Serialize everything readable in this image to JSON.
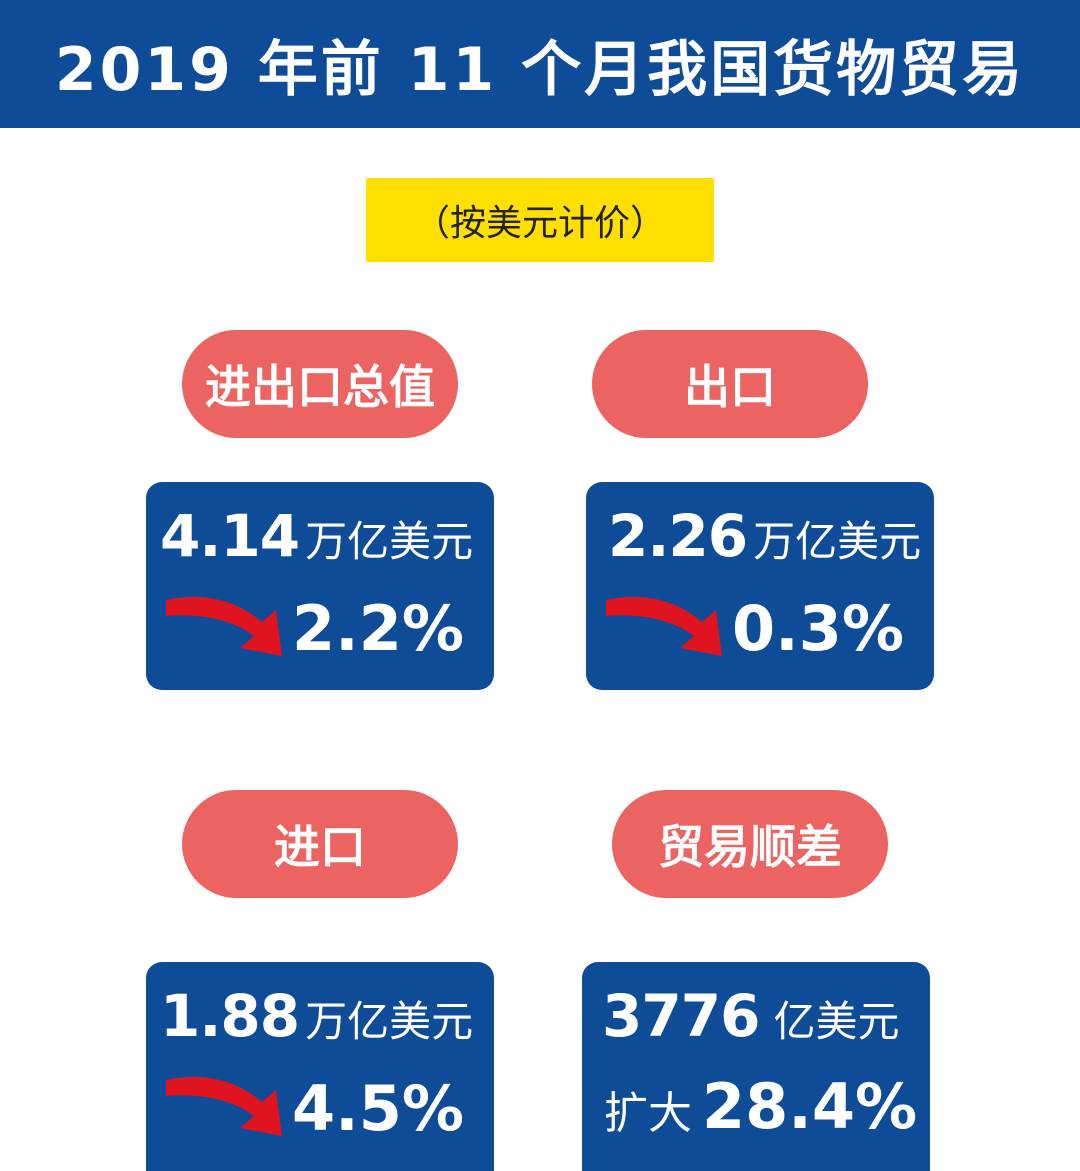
{
  "header": {
    "title": "2019 年前 11 个月我国货物贸易"
  },
  "note": "（按美元计价）",
  "cards": {
    "total": {
      "label": "进出口总值",
      "value": "4.14",
      "unit": "万亿美元",
      "change": "2.2%",
      "trend": "down"
    },
    "export": {
      "label": "出口",
      "value": "2.26",
      "unit": "万亿美元",
      "change": "0.3%",
      "trend": "down"
    },
    "import": {
      "label": "进口",
      "value": "1.88",
      "unit": "万亿美元",
      "change": "4.5%",
      "trend": "down"
    },
    "surplus": {
      "label": "贸易顺差",
      "value": "3776",
      "unit": "亿美元",
      "change_label": "扩大",
      "change": "28.4%"
    }
  },
  "colors": {
    "banner": "#0f4c97",
    "pill": "#eb6461",
    "note_bg": "#ffe000",
    "arrow": "#e0141e"
  },
  "icons": {
    "trend": "down-arrow-icon"
  }
}
